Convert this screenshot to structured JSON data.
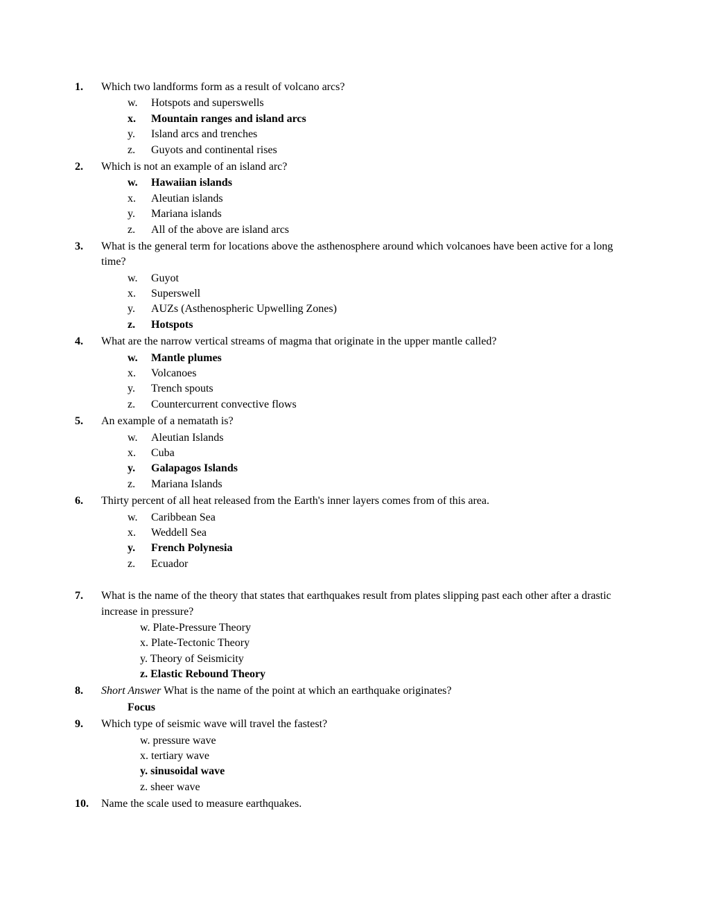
{
  "questions": [
    {
      "number": "1.",
      "text": "Which two landforms form as a result of volcano arcs?",
      "options": [
        {
          "letter": "w.",
          "text": "Hotspots and superswells",
          "bold": false
        },
        {
          "letter": "x.",
          "text": "Mountain ranges and island arcs",
          "bold": true
        },
        {
          "letter": "y.",
          "text": "Island arcs and trenches",
          "bold": false
        },
        {
          "letter": "z.",
          "text": "Guyots and continental rises",
          "bold": false
        }
      ]
    },
    {
      "number": "2.",
      "text": "Which is not an example of an island arc?",
      "options": [
        {
          "letter": "w.",
          "text": "Hawaiian islands",
          "bold": true
        },
        {
          "letter": "x.",
          "text": "Aleutian islands",
          "bold": false
        },
        {
          "letter": "y.",
          "text": "Mariana islands",
          "bold": false
        },
        {
          "letter": "z.",
          "text": "All of the above are island arcs",
          "bold": false
        }
      ]
    },
    {
      "number": "3.",
      "text": "What is the general term for locations above the asthenosphere around which volcanoes have been active for a long time?",
      "options": [
        {
          "letter": "w.",
          "text": "Guyot",
          "bold": false
        },
        {
          "letter": "x.",
          "text": "Superswell",
          "bold": false
        },
        {
          "letter": "y.",
          "text": "AUZs (Asthenospheric Upwelling Zones)",
          "bold": false
        },
        {
          "letter": "z.",
          "text": "Hotspots",
          "bold": true
        }
      ]
    },
    {
      "number": "4.",
      "text": "What are the narrow vertical streams of magma that originate in the upper mantle called?",
      "options": [
        {
          "letter": "w.",
          "text": "Mantle plumes",
          "bold": true
        },
        {
          "letter": "x.",
          "text": "Volcanoes",
          "bold": false
        },
        {
          "letter": "y.",
          "text": "Trench spouts",
          "bold": false
        },
        {
          "letter": "z.",
          "text": "Countercurrent convective flows",
          "bold": false
        }
      ]
    },
    {
      "number": "5.",
      "text": "An example of a nematath is?",
      "options": [
        {
          "letter": "w.",
          "text": "Aleutian Islands",
          "bold": false
        },
        {
          "letter": "x.",
          "text": "Cuba",
          "bold": false
        },
        {
          "letter": "y.",
          "text": "Galapagos Islands",
          "bold": true
        },
        {
          "letter": "z.",
          "text": "Mariana Islands",
          "bold": false
        }
      ]
    },
    {
      "number": "6.",
      "text": "Thirty percent of all heat released from the Earth's inner layers comes from of this area.",
      "options": [
        {
          "letter": "w.",
          "text": "Caribbean Sea",
          "bold": false
        },
        {
          "letter": "x.",
          "text": "Weddell Sea",
          "bold": false
        },
        {
          "letter": "y.",
          "text": "French Polynesia",
          "bold": true
        },
        {
          "letter": "z.",
          "text": "Ecuador",
          "bold": false
        }
      ]
    }
  ],
  "question7": {
    "number": "7.",
    "text": "What is the name of the theory that states that earthquakes result from plates slipping past each other after a drastic increase in pressure?",
    "options": [
      {
        "text": "w. Plate-Pressure Theory",
        "bold": false
      },
      {
        "text": "x. Plate-Tectonic Theory",
        "bold": false
      },
      {
        "text": "y. Theory of Seismicity",
        "bold": false
      },
      {
        "text": "z. Elastic Rebound Theory",
        "bold": true
      }
    ]
  },
  "question8": {
    "number": "8.",
    "italic_prefix": "Short Answer",
    "text": " What is the name of the point at which an earthquake originates?",
    "answer": "Focus"
  },
  "question9": {
    "number": "9.",
    "text": "Which type of seismic wave will travel the fastest?",
    "options": [
      {
        "text": "w. pressure wave",
        "bold": false
      },
      {
        "text": "x. tertiary wave",
        "bold": false
      },
      {
        "text": "y. sinusoidal wave",
        "bold": true
      },
      {
        "text": "z. sheer wave",
        "bold": false
      }
    ]
  },
  "question10": {
    "number": "10.",
    "text": "Name the scale used to measure earthquakes."
  }
}
